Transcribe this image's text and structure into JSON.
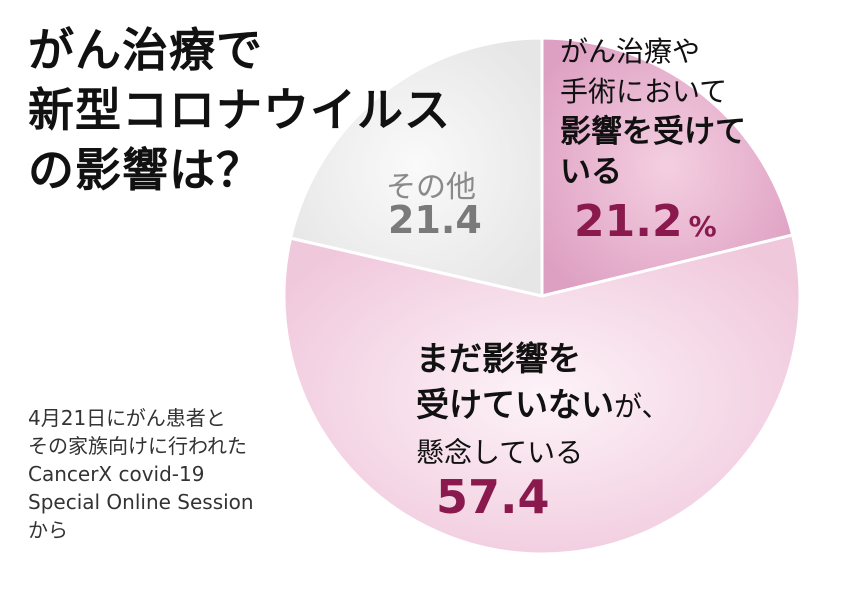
{
  "title_lines": [
    "がん治療で",
    "新型コロナウイルス",
    "の影響は？"
  ],
  "source_lines": [
    "4月21日にがん患者と",
    "その家族向けに行われた",
    "CancerX covid-19",
    "Special Online Session",
    "から"
  ],
  "labels": {
    "affected_lines": [
      "がん治療や",
      "手術において"
    ],
    "affected_bold_lines": [
      "影響を受けて",
      "いる"
    ],
    "affected_value": "21.2",
    "percent_sign": "%",
    "not_yet_line1": "まだ影響を",
    "not_yet_line2_bold": "受けていない",
    "not_yet_line2_suffix": "が、",
    "not_yet_line3": "懸念している",
    "not_yet_value": "57.4",
    "other_name": "その他",
    "other_value": "21.4"
  },
  "colors": {
    "affected": "#dea0c2",
    "not_yet": "#f3d6e4",
    "other": "#ececec",
    "value_text": "#8a1a4e"
  },
  "chart_data": {
    "type": "pie",
    "title": "がん治療で新型コロナウイルスの影響は？",
    "unit": "%",
    "slices": [
      {
        "label": "がん治療や手術において影響を受けている",
        "value": 21.2
      },
      {
        "label": "まだ影響を受けていないが、懸念している",
        "value": 57.4
      },
      {
        "label": "その他",
        "value": 21.4
      }
    ],
    "start": "top",
    "direction": "clockwise"
  }
}
